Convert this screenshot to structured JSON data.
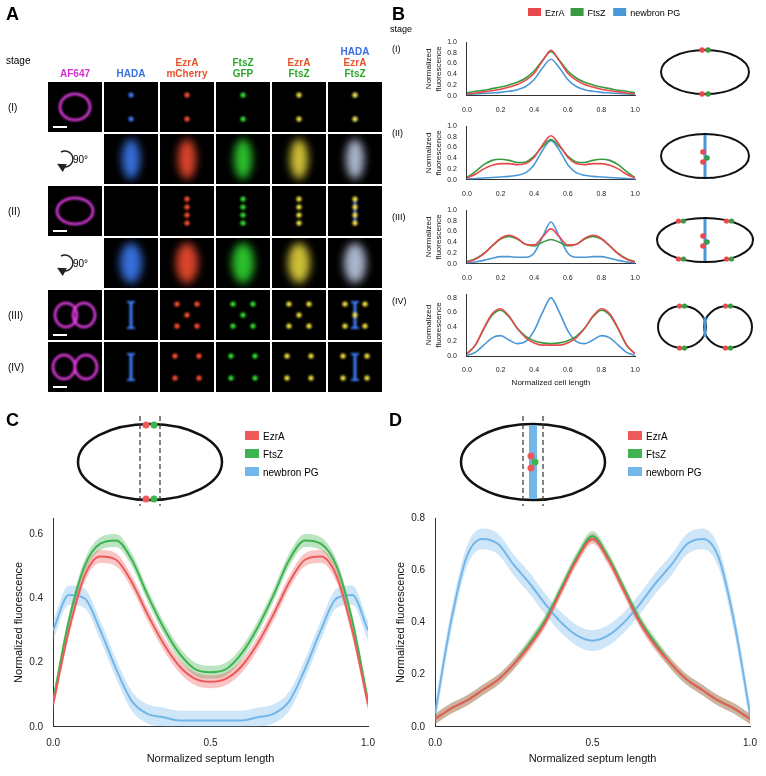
{
  "panel_a": {
    "letter": "A",
    "row_header": "stage",
    "columns": [
      [
        "AF647"
      ],
      [
        "HADA"
      ],
      [
        "EzrA",
        "mCherry"
      ],
      [
        "FtsZ",
        "GFP"
      ],
      [
        "EzrA",
        "FtsZ"
      ],
      [
        "HADA",
        "EzrA",
        "FtsZ"
      ]
    ],
    "rows": [
      {
        "label": "(I)"
      },
      {
        "label": "90°",
        "rotated": true
      },
      {
        "label": "(II)"
      },
      {
        "label": "90°",
        "rotated": true
      },
      {
        "label": "(III)"
      },
      {
        "label": "(IV)"
      }
    ]
  },
  "chart_data": [
    {
      "panel": "B",
      "stage_header": "stage",
      "title": "(I)",
      "type": "line",
      "legend": "top",
      "grid": false,
      "y_label": "Normalized fluorescence",
      "x": [
        0,
        0.05,
        0.1,
        0.15,
        0.2,
        0.25,
        0.3,
        0.35,
        0.4,
        0.45,
        0.5,
        0.55,
        0.6,
        0.65,
        0.7,
        0.75,
        0.8,
        0.85,
        0.9,
        0.95,
        1
      ],
      "xlim": [
        0,
        1
      ],
      "xticks": [
        {
          "value": 0,
          "label": "0.0"
        },
        0.2,
        0.4,
        0.6,
        0.8,
        {
          "value": 1,
          "label": "1.0"
        }
      ],
      "ylim": [
        0,
        1
      ],
      "yticks": [
        {
          "value": 0,
          "label": "0.0"
        },
        0.2,
        0.4,
        0.6,
        0.8,
        {
          "value": 1,
          "label": "1.0"
        }
      ],
      "series": [
        {
          "name": "EzrA",
          "color": "#e8494c",
          "values": [
            0.03,
            0.05,
            0.07,
            0.09,
            0.12,
            0.16,
            0.21,
            0.29,
            0.42,
            0.65,
            0.85,
            0.65,
            0.42,
            0.29,
            0.21,
            0.16,
            0.12,
            0.09,
            0.07,
            0.05,
            0.03
          ]
        },
        {
          "name": "FtsZ",
          "color": "#3a9a3f",
          "values": [
            0.05,
            0.08,
            0.1,
            0.13,
            0.16,
            0.2,
            0.25,
            0.33,
            0.46,
            0.66,
            0.82,
            0.66,
            0.46,
            0.33,
            0.25,
            0.2,
            0.16,
            0.13,
            0.1,
            0.08,
            0.05
          ]
        },
        {
          "name": "newbron PG",
          "color": "#4a97d8",
          "values": [
            0.02,
            0.03,
            0.04,
            0.05,
            0.06,
            0.08,
            0.11,
            0.17,
            0.3,
            0.52,
            0.68,
            0.52,
            0.3,
            0.17,
            0.11,
            0.08,
            0.06,
            0.05,
            0.04,
            0.03,
            0.02
          ]
        }
      ]
    },
    {
      "panel": "B",
      "title": "(II)",
      "type": "line",
      "grid": false,
      "y_label": "Normalized fluorescence",
      "x": [
        0,
        0.05,
        0.1,
        0.15,
        0.2,
        0.25,
        0.3,
        0.35,
        0.4,
        0.45,
        0.5,
        0.55,
        0.6,
        0.65,
        0.7,
        0.75,
        0.8,
        0.85,
        0.9,
        0.95,
        1
      ],
      "xlim": [
        0,
        1
      ],
      "xticks": [
        {
          "value": 0,
          "label": "0.0"
        },
        0.2,
        0.4,
        0.6,
        0.8,
        {
          "value": 1,
          "label": "1.0"
        }
      ],
      "ylim": [
        0,
        1
      ],
      "yticks": [
        {
          "value": 0,
          "label": "0.0"
        },
        0.2,
        0.4,
        0.6,
        0.8,
        {
          "value": 1,
          "label": "1.0"
        }
      ],
      "series": [
        {
          "name": "EzrA",
          "color": "#e8494c",
          "values": [
            0.03,
            0.1,
            0.2,
            0.27,
            0.3,
            0.3,
            0.28,
            0.3,
            0.42,
            0.65,
            0.82,
            0.65,
            0.42,
            0.3,
            0.28,
            0.3,
            0.3,
            0.27,
            0.2,
            0.1,
            0.03
          ]
        },
        {
          "name": "FtsZ",
          "color": "#3a9a3f",
          "values": [
            0.04,
            0.15,
            0.28,
            0.36,
            0.38,
            0.36,
            0.32,
            0.33,
            0.44,
            0.62,
            0.75,
            0.62,
            0.44,
            0.33,
            0.32,
            0.36,
            0.38,
            0.36,
            0.28,
            0.15,
            0.04
          ]
        },
        {
          "name": "newbron PG",
          "color": "#4a97d8",
          "values": [
            0.01,
            0.02,
            0.03,
            0.04,
            0.05,
            0.06,
            0.08,
            0.13,
            0.28,
            0.55,
            0.73,
            0.55,
            0.28,
            0.13,
            0.08,
            0.06,
            0.05,
            0.04,
            0.03,
            0.02,
            0.01
          ]
        }
      ]
    },
    {
      "panel": "B",
      "title": "(III)",
      "type": "line",
      "grid": false,
      "y_label": "Normalized fluorescence",
      "x": [
        0,
        0.05,
        0.1,
        0.15,
        0.2,
        0.25,
        0.3,
        0.35,
        0.4,
        0.45,
        0.5,
        0.55,
        0.6,
        0.65,
        0.7,
        0.75,
        0.8,
        0.85,
        0.9,
        0.95,
        1
      ],
      "xlim": [
        0,
        1
      ],
      "xticks": [
        {
          "value": 0,
          "label": "0.0"
        },
        0.2,
        0.4,
        0.6,
        0.8,
        {
          "value": 1,
          "label": "1.0"
        }
      ],
      "ylim": [
        0,
        1
      ],
      "yticks": [
        {
          "value": 0,
          "label": "0.0"
        },
        0.2,
        0.4,
        0.6,
        0.8,
        {
          "value": 1,
          "label": "1.0"
        }
      ],
      "series": [
        {
          "name": "EzrA",
          "color": "#e8494c",
          "values": [
            0.03,
            0.08,
            0.18,
            0.33,
            0.47,
            0.53,
            0.47,
            0.36,
            0.35,
            0.5,
            0.65,
            0.5,
            0.35,
            0.36,
            0.47,
            0.53,
            0.47,
            0.33,
            0.18,
            0.08,
            0.03
          ]
        },
        {
          "name": "FtsZ",
          "color": "#3a9a3f",
          "values": [
            0.04,
            0.09,
            0.19,
            0.33,
            0.46,
            0.51,
            0.46,
            0.36,
            0.33,
            0.4,
            0.45,
            0.4,
            0.33,
            0.36,
            0.46,
            0.51,
            0.46,
            0.33,
            0.19,
            0.09,
            0.04
          ]
        },
        {
          "name": "newbron PG",
          "color": "#4a97d8",
          "values": [
            0.01,
            0.03,
            0.06,
            0.1,
            0.13,
            0.13,
            0.12,
            0.12,
            0.2,
            0.5,
            0.78,
            0.5,
            0.2,
            0.12,
            0.12,
            0.13,
            0.13,
            0.1,
            0.06,
            0.03,
            0.01
          ]
        }
      ]
    },
    {
      "panel": "B",
      "title": "(IV)",
      "type": "line",
      "grid": false,
      "y_label": "Normalized fluorescence",
      "x_label": "Normalized cell length",
      "x": [
        0,
        0.05,
        0.1,
        0.15,
        0.2,
        0.25,
        0.3,
        0.35,
        0.4,
        0.45,
        0.5,
        0.55,
        0.6,
        0.65,
        0.7,
        0.75,
        0.8,
        0.85,
        0.9,
        0.95,
        1
      ],
      "xlim": [
        0,
        1
      ],
      "xticks": [
        {
          "value": 0,
          "label": "0.0"
        },
        0.2,
        0.4,
        0.6,
        0.8,
        {
          "value": 1,
          "label": "1.0"
        }
      ],
      "ylim": [
        0,
        0.85
      ],
      "yticks": [
        {
          "value": 0,
          "label": "0.0"
        },
        0.2,
        0.4,
        0.6,
        0.8
      ],
      "series": [
        {
          "name": "EzrA",
          "color": "#e8494c",
          "values": [
            0.03,
            0.15,
            0.38,
            0.58,
            0.65,
            0.55,
            0.38,
            0.25,
            0.18,
            0.15,
            0.15,
            0.15,
            0.18,
            0.25,
            0.38,
            0.55,
            0.65,
            0.58,
            0.38,
            0.15,
            0.03
          ]
        },
        {
          "name": "FtsZ",
          "color": "#3a9a3f",
          "values": [
            0.03,
            0.15,
            0.37,
            0.56,
            0.63,
            0.54,
            0.38,
            0.27,
            0.21,
            0.18,
            0.17,
            0.18,
            0.21,
            0.27,
            0.38,
            0.54,
            0.63,
            0.56,
            0.37,
            0.15,
            0.03
          ]
        },
        {
          "name": "newbron PG",
          "color": "#4a97d8",
          "values": [
            0.01,
            0.05,
            0.15,
            0.25,
            0.28,
            0.22,
            0.17,
            0.2,
            0.35,
            0.6,
            0.8,
            0.6,
            0.35,
            0.2,
            0.17,
            0.22,
            0.28,
            0.25,
            0.15,
            0.05,
            0.01
          ]
        }
      ]
    },
    {
      "panel": "C",
      "type": "line",
      "legend": "right",
      "grid": false,
      "y_label": "Normalized fluorescence",
      "x_label": "Normalized septum length",
      "x": [
        0,
        0.05,
        0.1,
        0.15,
        0.2,
        0.25,
        0.3,
        0.35,
        0.4,
        0.45,
        0.5,
        0.55,
        0.6,
        0.65,
        0.7,
        0.75,
        0.8,
        0.85,
        0.9,
        0.95,
        1
      ],
      "xlim": [
        0,
        1
      ],
      "xticks": [
        {
          "value": 0,
          "label": "0.0"
        },
        0.5,
        {
          "value": 1,
          "label": "1.0"
        }
      ],
      "ylim": [
        0,
        0.65
      ],
      "yticks": [
        {
          "value": 0,
          "label": "0.0"
        },
        0.2,
        0.4,
        0.6
      ],
      "series": [
        {
          "name": "EzrA",
          "color": "#ee5a5a",
          "error": 0.02,
          "values": [
            0.07,
            0.3,
            0.47,
            0.53,
            0.52,
            0.45,
            0.35,
            0.26,
            0.19,
            0.15,
            0.14,
            0.15,
            0.19,
            0.26,
            0.35,
            0.45,
            0.52,
            0.53,
            0.47,
            0.3,
            0.07
          ]
        },
        {
          "name": "FtsZ",
          "color": "#3fb34f",
          "error": 0.02,
          "values": [
            0.08,
            0.33,
            0.5,
            0.57,
            0.58,
            0.52,
            0.41,
            0.31,
            0.23,
            0.18,
            0.17,
            0.18,
            0.23,
            0.31,
            0.41,
            0.52,
            0.58,
            0.57,
            0.5,
            0.33,
            0.08
          ]
        },
        {
          "name": "newbron PG",
          "color": "#72b6ea",
          "error": 0.03,
          "values": [
            0.3,
            0.41,
            0.4,
            0.3,
            0.18,
            0.08,
            0.04,
            0.03,
            0.02,
            0.02,
            0.02,
            0.02,
            0.02,
            0.03,
            0.04,
            0.08,
            0.18,
            0.3,
            0.4,
            0.41,
            0.3
          ]
        }
      ]
    },
    {
      "panel": "D",
      "type": "line",
      "legend": "right",
      "grid": false,
      "y_label": "Normalized fluorescence",
      "x_label": "Normalized septum length",
      "x": [
        0,
        0.05,
        0.1,
        0.15,
        0.2,
        0.25,
        0.3,
        0.35,
        0.4,
        0.45,
        0.5,
        0.55,
        0.6,
        0.65,
        0.7,
        0.75,
        0.8,
        0.85,
        0.9,
        0.95,
        1
      ],
      "xlim": [
        0,
        1
      ],
      "xticks": [
        {
          "value": 0,
          "label": "0.0"
        },
        0.5,
        {
          "value": 1,
          "label": "1.0"
        }
      ],
      "ylim": [
        0,
        0.8
      ],
      "yticks": [
        {
          "value": 0,
          "label": "0.0"
        },
        0.2,
        0.4,
        0.6,
        0.8
      ],
      "series": [
        {
          "name": "EzrA",
          "color": "#ee5a5a",
          "error": 0.02,
          "values": [
            0.03,
            0.07,
            0.1,
            0.14,
            0.18,
            0.24,
            0.31,
            0.4,
            0.52,
            0.64,
            0.72,
            0.64,
            0.52,
            0.4,
            0.31,
            0.24,
            0.18,
            0.14,
            0.1,
            0.07,
            0.03
          ]
        },
        {
          "name": "FtsZ",
          "color": "#3fb34f",
          "error": 0.02,
          "values": [
            0.03,
            0.07,
            0.1,
            0.14,
            0.18,
            0.24,
            0.32,
            0.41,
            0.53,
            0.65,
            0.73,
            0.65,
            0.53,
            0.41,
            0.32,
            0.24,
            0.18,
            0.14,
            0.1,
            0.07,
            0.03
          ]
        },
        {
          "name": "newborn PG",
          "color": "#72b6ea",
          "error": 0.04,
          "values": [
            0.05,
            0.4,
            0.65,
            0.72,
            0.7,
            0.62,
            0.55,
            0.47,
            0.4,
            0.35,
            0.33,
            0.35,
            0.4,
            0.47,
            0.55,
            0.62,
            0.7,
            0.72,
            0.65,
            0.4,
            0.05
          ]
        }
      ]
    }
  ]
}
